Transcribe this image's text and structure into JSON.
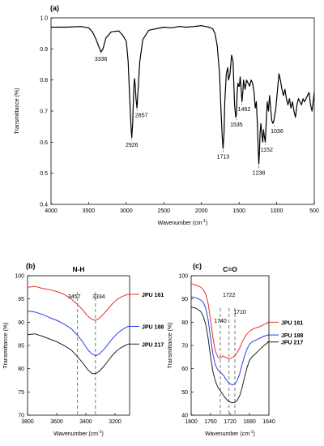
{
  "chart_data": [
    {
      "panel": "(a)",
      "type": "line",
      "xlabel": "Wavenumber (cm",
      "xlabel_sup": "-1",
      "xlabel_close": ")",
      "ylabel": "Transmittance (%)",
      "xlim": [
        4000,
        500
      ],
      "ylim": [
        0.4,
        1.0
      ],
      "x_ticks": [
        4000,
        3500,
        3000,
        2500,
        2000,
        1500,
        1000,
        500
      ],
      "y_ticks": [
        0.4,
        0.5,
        0.6,
        0.7,
        0.8,
        0.9,
        1.0
      ],
      "y_tick_labels": [
        "0.4",
        "0.5",
        "0.6",
        "0.7",
        "0.8",
        "0.9",
        "1.0"
      ],
      "grid": false,
      "series": [
        {
          "color": "#000000",
          "x": [
            4000,
            3800,
            3600,
            3500,
            3450,
            3400,
            3360,
            3336,
            3310,
            3270,
            3200,
            3100,
            3050,
            3000,
            2975,
            2950,
            2935,
            2926,
            2915,
            2900,
            2890,
            2880,
            2870,
            2857,
            2845,
            2820,
            2780,
            2700,
            2600,
            2500,
            2400,
            2300,
            2200,
            2100,
            2000,
            1950,
            1900,
            1850,
            1820,
            1790,
            1760,
            1740,
            1725,
            1713,
            1700,
            1690,
            1670,
            1650,
            1640,
            1620,
            1600,
            1580,
            1560,
            1545,
            1535,
            1525,
            1515,
            1505,
            1495,
            1485,
            1475,
            1462,
            1450,
            1440,
            1420,
            1400,
            1380,
            1360,
            1340,
            1320,
            1300,
            1285,
            1270,
            1255,
            1245,
            1238,
            1230,
            1220,
            1210,
            1195,
            1185,
            1175,
            1165,
            1152,
            1140,
            1125,
            1110,
            1095,
            1080,
            1065,
            1050,
            1036,
            1025,
            1015,
            1000,
            985,
            970,
            950,
            930,
            910,
            890,
            870,
            850,
            830,
            810,
            790,
            770,
            750,
            730,
            710,
            690,
            670,
            650,
            630,
            610,
            590,
            570,
            550,
            530,
            510,
            500
          ],
          "y": [
            0.97,
            0.97,
            0.972,
            0.968,
            0.955,
            0.93,
            0.905,
            0.89,
            0.9,
            0.935,
            0.955,
            0.958,
            0.945,
            0.925,
            0.86,
            0.72,
            0.64,
            0.615,
            0.66,
            0.77,
            0.805,
            0.78,
            0.74,
            0.71,
            0.76,
            0.86,
            0.93,
            0.96,
            0.965,
            0.97,
            0.968,
            0.972,
            0.97,
            0.972,
            0.975,
            0.972,
            0.97,
            0.965,
            0.95,
            0.91,
            0.82,
            0.7,
            0.62,
            0.58,
            0.63,
            0.73,
            0.82,
            0.84,
            0.8,
            0.82,
            0.88,
            0.86,
            0.72,
            0.68,
            0.69,
            0.76,
            0.79,
            0.78,
            0.78,
            0.81,
            0.78,
            0.73,
            0.76,
            0.8,
            0.77,
            0.8,
            0.79,
            0.78,
            0.8,
            0.79,
            0.76,
            0.71,
            0.73,
            0.65,
            0.58,
            0.53,
            0.56,
            0.63,
            0.66,
            0.62,
            0.6,
            0.64,
            0.62,
            0.6,
            0.66,
            0.73,
            0.7,
            0.75,
            0.71,
            0.67,
            0.66,
            0.67,
            0.69,
            0.7,
            0.74,
            0.78,
            0.82,
            0.8,
            0.77,
            0.75,
            0.77,
            0.74,
            0.72,
            0.74,
            0.71,
            0.73,
            0.7,
            0.68,
            0.72,
            0.74,
            0.73,
            0.72,
            0.74,
            0.73,
            0.74,
            0.75,
            0.76,
            0.72,
            0.7,
            0.74,
            0.76
          ]
        }
      ],
      "annotations": [
        {
          "text": "3336",
          "x": 3336,
          "y": 0.89,
          "dy": 0.028
        },
        {
          "text": "2926",
          "x": 2926,
          "y": 0.615,
          "dy": 0.03
        },
        {
          "text": "2857",
          "x": 2857,
          "y": 0.71,
          "dy": 0.03,
          "dx": 60
        },
        {
          "text": "1713",
          "x": 1713,
          "y": 0.58,
          "dy": 0.032
        },
        {
          "text": "1535",
          "x": 1535,
          "y": 0.68,
          "dy": 0.03
        },
        {
          "text": "1462",
          "x": 1462,
          "y": 0.73,
          "dy": 0.03,
          "dx": 30
        },
        {
          "text": "1238",
          "x": 1238,
          "y": 0.53,
          "dy": 0.035
        },
        {
          "text": "1152",
          "x": 1152,
          "y": 0.6,
          "dy": 0.03,
          "dx": 20
        },
        {
          "text": "1036",
          "x": 1036,
          "y": 0.66,
          "dy": 0.03,
          "dx": 40
        }
      ]
    },
    {
      "panel": "(b)",
      "type": "line",
      "title": "N-H",
      "xlabel": "Wavenumber (cm",
      "xlabel_sup": "-1",
      "xlabel_close": ")",
      "ylabel": "Transmittance (%)",
      "xlim": [
        3800,
        3100
      ],
      "ylim": [
        70,
        100
      ],
      "x_ticks": [
        3800,
        3600,
        3400,
        3200
      ],
      "y_ticks": [
        70,
        75,
        80,
        85,
        90,
        95,
        100
      ],
      "grid": false,
      "vlines": [
        3457,
        3334
      ],
      "vline_labels": [
        "3457",
        "3334"
      ],
      "series": [
        {
          "name": "JPU 161",
          "color": "#e8312a",
          "x": [
            3800,
            3750,
            3700,
            3650,
            3600,
            3550,
            3500,
            3457,
            3420,
            3390,
            3360,
            3334,
            3310,
            3280,
            3250,
            3220,
            3190,
            3160,
            3130,
            3110
          ],
          "y": [
            97.5,
            97.7,
            97.3,
            97.0,
            96.6,
            96.0,
            95.0,
            93.8,
            92.6,
            91.4,
            90.6,
            90.4,
            90.8,
            91.7,
            92.8,
            93.9,
            94.8,
            95.4,
            95.8,
            96.0
          ]
        },
        {
          "name": "JPU 188",
          "color": "#2a3fe8",
          "x": [
            3800,
            3750,
            3700,
            3650,
            3600,
            3550,
            3500,
            3457,
            3420,
            3390,
            3360,
            3334,
            3310,
            3280,
            3250,
            3220,
            3190,
            3160,
            3130,
            3110
          ],
          "y": [
            92.4,
            92.2,
            91.7,
            91.0,
            90.4,
            89.6,
            88.6,
            87.2,
            85.7,
            84.2,
            83.2,
            82.8,
            83.1,
            84.0,
            85.2,
            86.4,
            87.4,
            88.2,
            88.8,
            89.1
          ]
        },
        {
          "name": "JPU 217",
          "color": "#222222",
          "x": [
            3800,
            3750,
            3700,
            3650,
            3600,
            3550,
            3500,
            3457,
            3420,
            3390,
            3360,
            3334,
            3310,
            3280,
            3250,
            3220,
            3190,
            3160,
            3130,
            3110
          ],
          "y": [
            87.3,
            87.5,
            87.0,
            86.4,
            85.8,
            85.0,
            84.0,
            82.6,
            81.2,
            79.9,
            79.0,
            78.9,
            79.4,
            80.4,
            81.6,
            82.8,
            83.8,
            84.5,
            85.0,
            85.3
          ]
        }
      ]
    },
    {
      "panel": "(c)",
      "type": "line",
      "title": "C=O",
      "xlabel": "Wavenumber (cm",
      "xlabel_sup": "-1",
      "xlabel_close": ")",
      "ylabel": "Transmittance (%)",
      "xlim": [
        1800,
        1640
      ],
      "ylim": [
        40,
        100
      ],
      "x_ticks": [
        1800,
        1760,
        1720,
        1680,
        1640
      ],
      "y_ticks": [
        40,
        50,
        60,
        70,
        80,
        90,
        100
      ],
      "grid": false,
      "vlines": [
        1740,
        1722,
        1710
      ],
      "vline_labels": [
        "1740",
        "1722",
        "1710"
      ],
      "series": [
        {
          "name": "JPU 161",
          "color": "#e8312a",
          "x": [
            1800,
            1790,
            1780,
            1775,
            1770,
            1765,
            1760,
            1755,
            1750,
            1745,
            1740,
            1735,
            1730,
            1725,
            1720,
            1715,
            1710,
            1705,
            1700,
            1695,
            1690,
            1685,
            1680,
            1675,
            1670,
            1665,
            1660,
            1655,
            1650,
            1645,
            1640
          ],
          "y": [
            96.5,
            96.0,
            95.0,
            94.0,
            92.0,
            88.0,
            81.0,
            73.0,
            67.5,
            65.0,
            64.5,
            65.5,
            65.0,
            64.5,
            64.3,
            64.8,
            65.5,
            67.0,
            69.0,
            71.5,
            73.5,
            75.0,
            76.0,
            76.8,
            77.3,
            77.7,
            78.0,
            78.5,
            79.0,
            79.5,
            80.0
          ]
        },
        {
          "name": "JPU 188",
          "color": "#2a3fe8",
          "x": [
            1800,
            1790,
            1780,
            1775,
            1770,
            1765,
            1760,
            1755,
            1750,
            1745,
            1740,
            1735,
            1730,
            1725,
            1720,
            1715,
            1710,
            1705,
            1700,
            1695,
            1690,
            1685,
            1680,
            1675,
            1670,
            1665,
            1660,
            1655,
            1650,
            1645,
            1640
          ],
          "y": [
            91.0,
            90.5,
            89.5,
            88.5,
            86.0,
            81.0,
            73.0,
            66.0,
            61.5,
            59.5,
            58.5,
            57.5,
            56.0,
            54.5,
            53.5,
            53.0,
            53.5,
            55.0,
            58.0,
            62.0,
            65.5,
            68.5,
            70.5,
            71.5,
            72.0,
            72.5,
            73.0,
            73.5,
            74.0,
            74.3,
            74.5
          ]
        },
        {
          "name": "JPU 217",
          "color": "#222222",
          "x": [
            1800,
            1790,
            1780,
            1775,
            1770,
            1765,
            1760,
            1755,
            1750,
            1745,
            1740,
            1735,
            1730,
            1725,
            1720,
            1715,
            1710,
            1705,
            1700,
            1695,
            1690,
            1685,
            1680,
            1675,
            1670,
            1665,
            1660,
            1655,
            1650,
            1645,
            1640
          ],
          "y": [
            86.5,
            86.0,
            84.5,
            82.5,
            79.0,
            73.0,
            65.0,
            58.5,
            54.5,
            52.0,
            50.5,
            49.0,
            47.5,
            46.3,
            45.6,
            45.3,
            45.5,
            46.5,
            48.5,
            52.0,
            56.5,
            60.5,
            63.5,
            65.0,
            66.0,
            67.0,
            68.0,
            69.0,
            70.0,
            70.8,
            71.5
          ]
        }
      ]
    }
  ]
}
